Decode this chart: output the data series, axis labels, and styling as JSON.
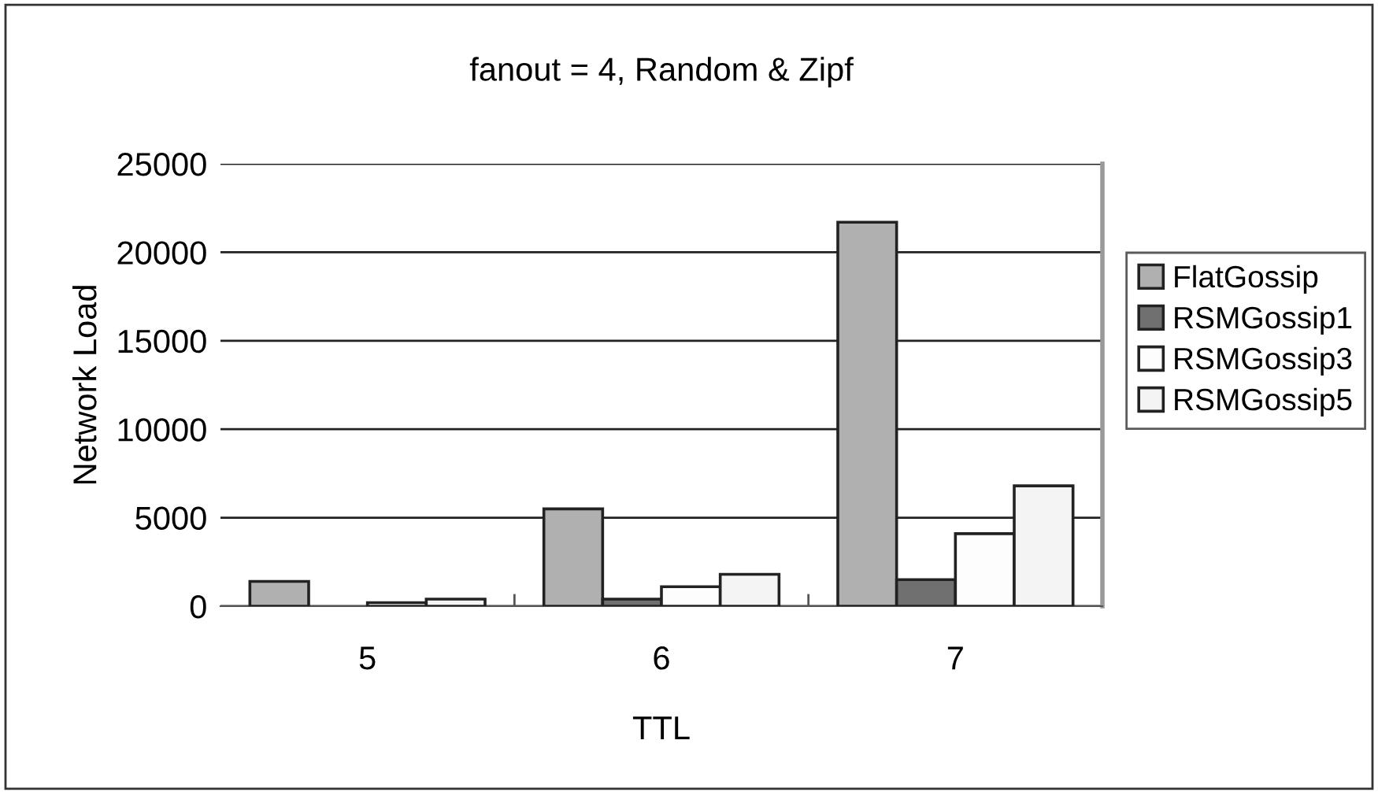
{
  "chart_data": {
    "type": "bar",
    "title": "fanout = 4, Random & Zipf",
    "xlabel": "TTL",
    "ylabel": "Network Load",
    "categories": [
      "5",
      "6",
      "7"
    ],
    "series": [
      {
        "name": "FlatGossip",
        "color": "#b0b0b0",
        "values": [
          1400,
          5500,
          21700
        ]
      },
      {
        "name": "RSMGossip1",
        "color": "#707070",
        "values": [
          null,
          400,
          1500
        ]
      },
      {
        "name": "RSMGossip3",
        "color": "#fdfdfd",
        "values": [
          200,
          1100,
          4100
        ]
      },
      {
        "name": "RSMGossip5",
        "color": "#f4f4f4",
        "values": [
          400,
          1800,
          6800
        ]
      }
    ],
    "ylim": [
      0,
      25000
    ],
    "yticks": [
      0,
      5000,
      10000,
      15000,
      20000,
      25000
    ],
    "grid": "y",
    "legend": "right"
  }
}
